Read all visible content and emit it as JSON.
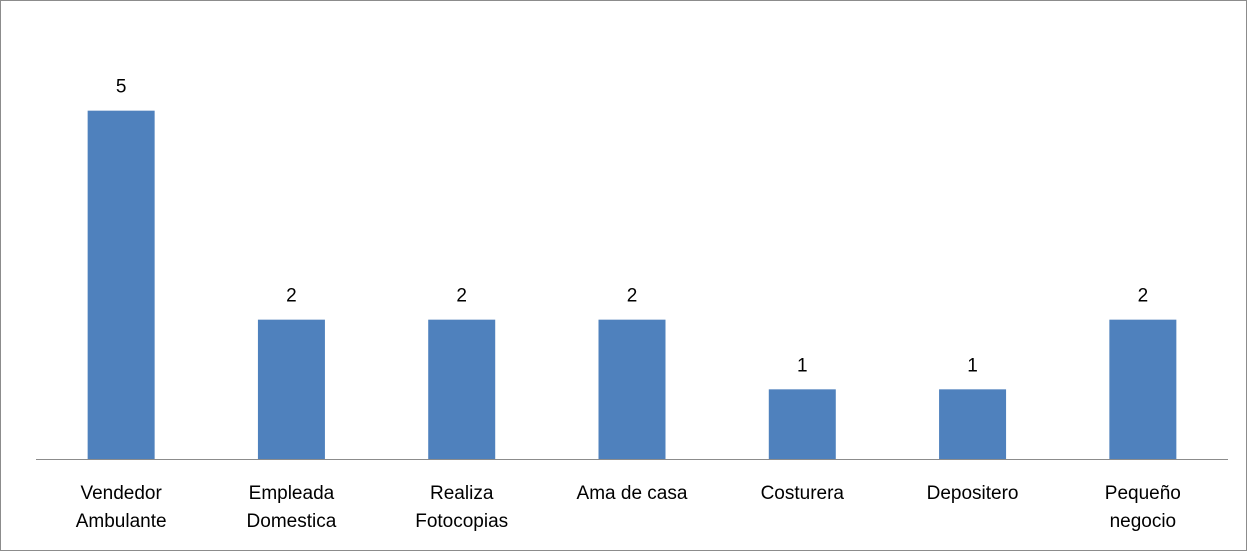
{
  "chart_data": {
    "type": "bar",
    "categories": [
      "Vendedor Ambulante",
      "Empleada Domestica",
      "Realiza Fotocopias",
      "Ama de casa",
      "Costurera",
      "Depositero",
      "Pequeño negocio"
    ],
    "values": [
      5,
      2,
      2,
      2,
      1,
      1,
      2
    ],
    "color": "#4f81bd",
    "ylim": [
      0,
      6
    ]
  }
}
